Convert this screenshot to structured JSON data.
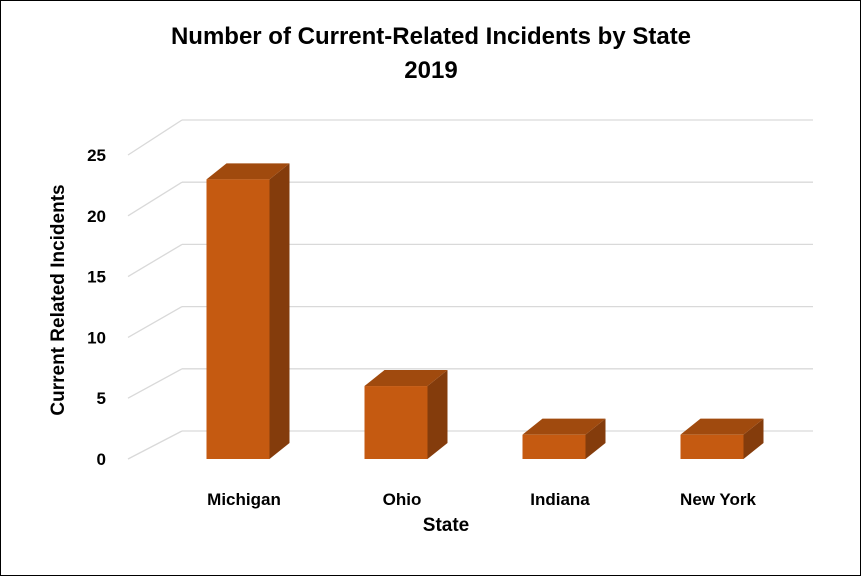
{
  "chart_data": {
    "type": "bar",
    "title": "Number of Current-Related Incidents by State",
    "subtitle": "2019",
    "xlabel": "State",
    "ylabel": "Current Related Incidents",
    "categories": [
      "Michigan",
      "Ohio",
      "Indiana",
      "New York"
    ],
    "values": [
      23,
      6,
      2,
      2
    ],
    "ylim": [
      0,
      25
    ],
    "yticks": [
      "0",
      "5",
      "10",
      "15",
      "20",
      "25"
    ],
    "grid": true,
    "style": "3d-column",
    "colors": {
      "front": "#c55a11",
      "side": "#843c0c",
      "top": "#a04a0e",
      "grid": "#d9d9d9"
    }
  }
}
